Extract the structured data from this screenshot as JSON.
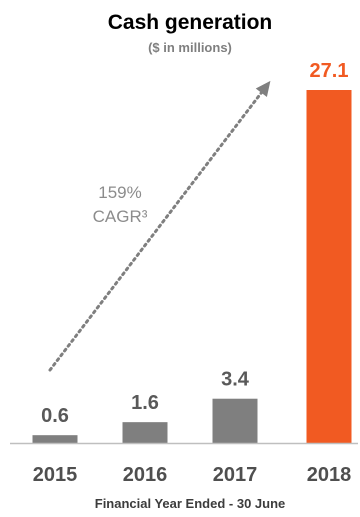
{
  "chart_data": {
    "type": "bar",
    "title": "Cash generation",
    "subtitle": "($ in millions)",
    "xlabel": "Financial Year Ended - 30 June",
    "ylabel": "",
    "categories": [
      "2015",
      "2016",
      "2017",
      "2018"
    ],
    "values": [
      0.6,
      1.6,
      3.4,
      27.1
    ],
    "value_labels": [
      "0.6",
      "1.6",
      "3.4",
      "27.1"
    ],
    "ylim": [
      0,
      27.1
    ],
    "grid": false,
    "legend": "none",
    "colors": {
      "default_bar": "#7f7f7f",
      "highlight_bar": "#f15a22",
      "default_label": "#595959",
      "highlight_label": "#f15a22",
      "axis": "#bfbfbf",
      "arrow": "#7f7f7f"
    },
    "highlight_index": 3,
    "annotation": {
      "lines": [
        "159%",
        "CAGR³"
      ],
      "type": "dotted-arrow"
    }
  }
}
